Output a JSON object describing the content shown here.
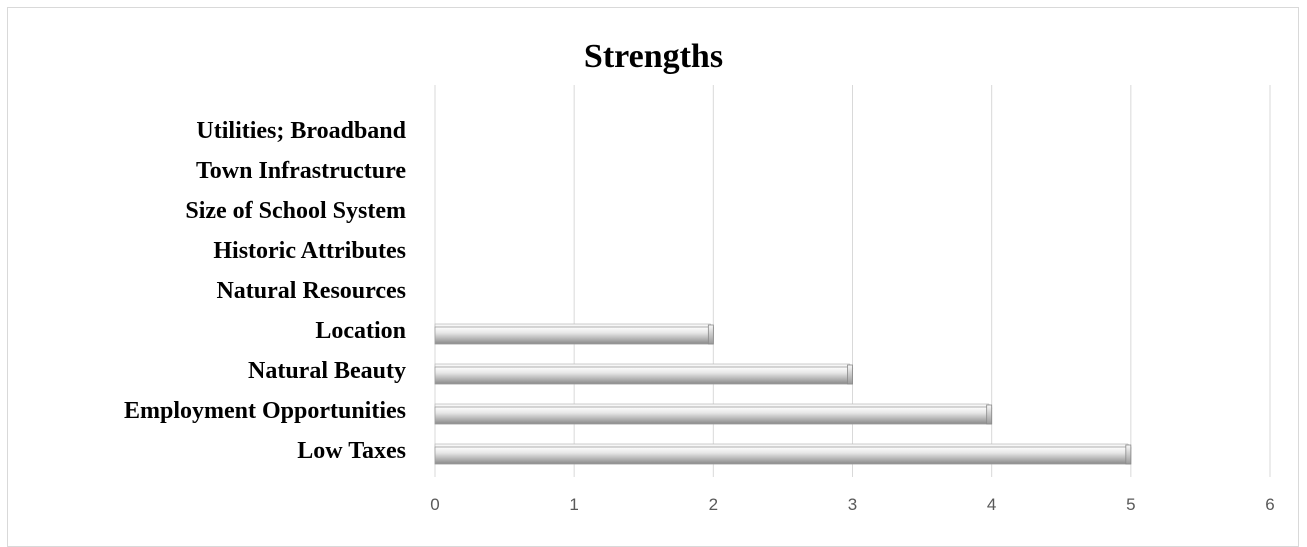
{
  "chart_data": {
    "type": "bar",
    "orientation": "horizontal",
    "title": "Strengths",
    "xlabel": "",
    "ylabel": "",
    "categories": [
      "Low Taxes",
      "Employment Opportunities",
      "Natural Beauty",
      "Location",
      "Natural Resources",
      "Historic Attributes",
      "Size of School System",
      "Town Infrastructure",
      "Utilities; Broadband"
    ],
    "values": [
      5,
      4,
      3,
      2,
      0,
      0,
      0,
      0,
      0
    ],
    "xlim": [
      0,
      6
    ],
    "xticks": [
      "0",
      "1",
      "2",
      "3",
      "4",
      "5",
      "6"
    ],
    "grid": "vertical",
    "legend": "none",
    "colors": {
      "bar_light": "#f4f4f4",
      "bar_mid": "#c8c8c8",
      "bar_dark": "#8c8c8c",
      "grid": "#d9d9d9"
    }
  }
}
